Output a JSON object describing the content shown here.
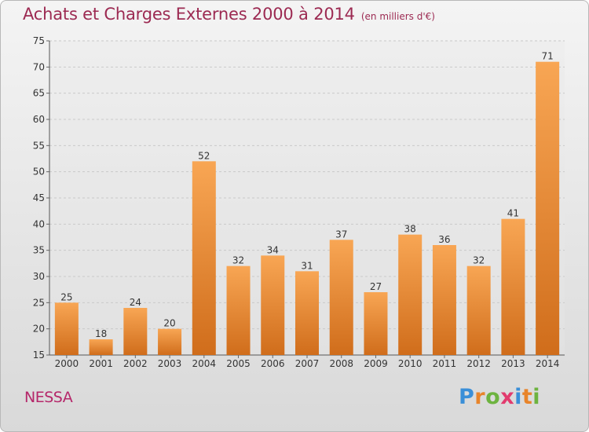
{
  "header": {
    "title": "Achats et Charges Externes 2000 à 2014",
    "subtitle": "(en milliers d'€)"
  },
  "footer": {
    "commune": "NESSA",
    "logo_text": "Proxiti",
    "logo_letter_colors": [
      "#3a8fd8",
      "#e8842a",
      "#6db33f",
      "#e23b6e",
      "#3a8fd8",
      "#e8842a",
      "#6db33f"
    ]
  },
  "colors": {
    "bar_top": "#f8a654",
    "bar_bottom": "#d06d1b",
    "grid": "#c9c9c9",
    "axis_text": "#333333"
  },
  "chart_data": {
    "type": "bar",
    "categories": [
      "2000",
      "2001",
      "2002",
      "2003",
      "2004",
      "2005",
      "2006",
      "2007",
      "2008",
      "2009",
      "2010",
      "2011",
      "2012",
      "2013",
      "2014"
    ],
    "values": [
      25,
      18,
      24,
      20,
      52,
      32,
      34,
      31,
      37,
      27,
      38,
      36,
      32,
      41,
      71
    ],
    "ylim": [
      15,
      75
    ],
    "yticks": [
      15,
      20,
      25,
      30,
      35,
      40,
      45,
      50,
      55,
      60,
      65,
      70,
      75
    ],
    "grid": true,
    "data_labels": true
  }
}
